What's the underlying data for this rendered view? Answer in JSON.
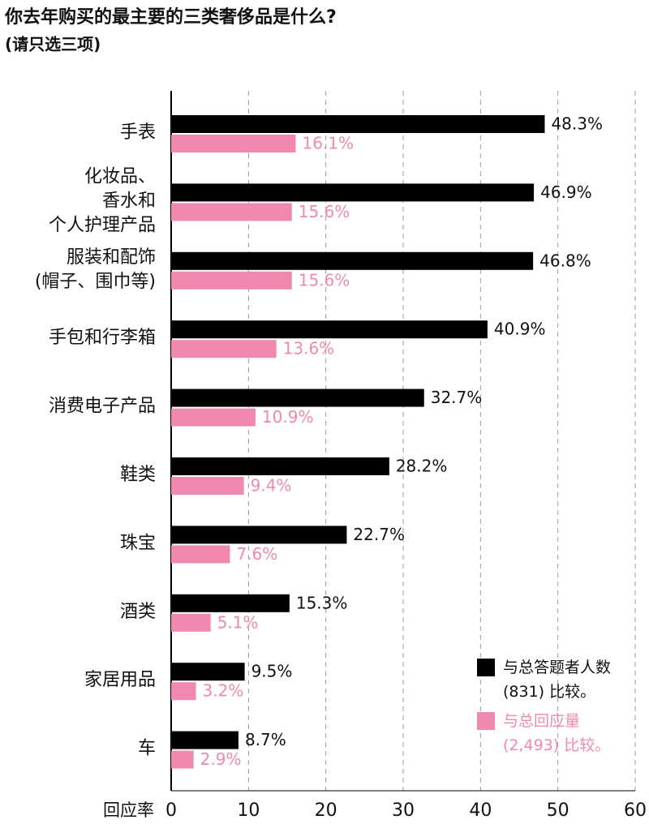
{
  "chart_data": {
    "type": "barh",
    "title": "你去年购买的最主要的三类奢侈品是什么?",
    "subtitle": "(请只选三项)",
    "xlabel": "回应率",
    "categories": [
      [
        "手表"
      ],
      [
        "化妆品、",
        "香水和",
        "个人护理产品"
      ],
      [
        "服装和配饰",
        "(帽子、围巾等)"
      ],
      [
        "手包和行李箱"
      ],
      [
        "消费电子产品"
      ],
      [
        "鞋类"
      ],
      [
        "珠宝"
      ],
      [
        "酒类"
      ],
      [
        "家居用品"
      ],
      [
        "车"
      ]
    ],
    "series": [
      {
        "name": "与总答题者人数(831) 比较。",
        "color": "#000000",
        "values": [
          48.3,
          46.9,
          46.8,
          40.9,
          32.7,
          28.2,
          22.7,
          15.3,
          9.5,
          8.7
        ],
        "value_labels": [
          "48.3%",
          "46.9%",
          "46.8%",
          "40.9%",
          "32.7%",
          "28.2%",
          "22.7%",
          "15.3%",
          "9.5%",
          "8.7%"
        ]
      },
      {
        "name": "与总回应量(2,493) 比较。",
        "color": "#f088b0",
        "values": [
          16.1,
          15.6,
          15.6,
          13.6,
          10.9,
          9.4,
          7.6,
          5.1,
          3.2,
          2.9
        ],
        "value_labels": [
          "16.1%",
          "15.6%",
          "15.6%",
          "13.6%",
          "10.9%",
          "9.4%",
          "7.6%",
          "5.1%",
          "3.2%",
          "2.9%"
        ]
      }
    ],
    "xlim": [
      0,
      60
    ],
    "xticks": [
      0,
      10,
      20,
      30,
      40,
      50,
      60
    ],
    "grid": true,
    "legend": "lower right"
  }
}
